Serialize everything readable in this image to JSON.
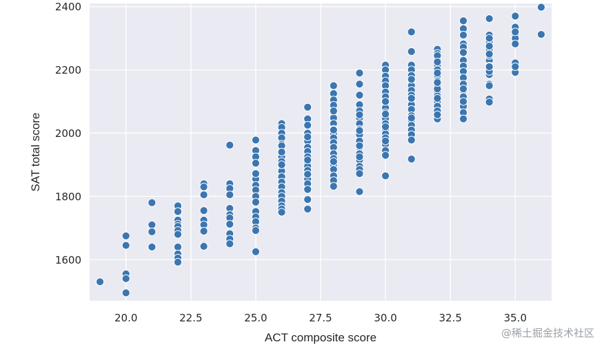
{
  "watermark": "@稀土掘金技术社区",
  "chart_data": {
    "type": "scatter",
    "xlabel": "ACT composite score",
    "ylabel": "SAT total score",
    "xlim": [
      18.6,
      36.4
    ],
    "ylim": [
      1470,
      2410
    ],
    "xticks": [
      "20.0",
      "22.5",
      "25.0",
      "27.5",
      "30.0",
      "32.5",
      "35.0"
    ],
    "yticks": [
      "1600",
      "1800",
      "2000",
      "2200",
      "2400"
    ],
    "grid": true,
    "background": "#eaeaf2",
    "point_color": "#3b76b0",
    "point_edge": "#ffffff",
    "x": [
      19,
      20,
      20,
      20,
      20,
      20,
      21,
      21,
      21,
      21,
      22,
      22,
      22,
      22,
      22,
      22,
      22,
      22,
      22,
      22,
      22,
      23,
      23,
      23,
      23,
      23,
      23,
      23,
      23,
      23,
      24,
      24,
      24,
      24,
      24,
      24,
      24,
      24,
      24,
      24,
      24,
      25,
      25,
      25,
      25,
      25,
      25,
      25,
      25,
      25,
      25,
      25,
      25,
      25,
      25,
      25,
      25,
      25,
      26,
      26,
      26,
      26,
      26,
      26,
      26,
      26,
      26,
      26,
      26,
      26,
      26,
      26,
      26,
      26,
      26,
      26,
      26,
      26,
      26,
      26,
      27,
      27,
      27,
      27,
      27,
      27,
      27,
      27,
      27,
      27,
      27,
      27,
      27,
      27,
      27,
      27,
      27,
      27,
      27,
      27,
      28,
      28,
      28,
      28,
      28,
      28,
      28,
      28,
      28,
      28,
      28,
      28,
      28,
      28,
      28,
      28,
      28,
      28,
      28,
      28,
      28,
      28,
      29,
      29,
      29,
      29,
      29,
      29,
      29,
      29,
      29,
      29,
      29,
      29,
      29,
      29,
      29,
      29,
      29,
      29,
      29,
      29,
      29,
      30,
      30,
      30,
      30,
      30,
      30,
      30,
      30,
      30,
      30,
      30,
      30,
      30,
      30,
      30,
      30,
      30,
      30,
      30,
      30,
      30,
      30,
      30,
      31,
      31,
      31,
      31,
      31,
      31,
      31,
      31,
      31,
      31,
      31,
      31,
      31,
      31,
      31,
      31,
      31,
      31,
      31,
      31,
      31,
      31,
      32,
      32,
      32,
      32,
      32,
      32,
      32,
      32,
      32,
      32,
      32,
      32,
      32,
      32,
      32,
      32,
      32,
      32,
      32,
      32,
      32,
      33,
      33,
      33,
      33,
      33,
      33,
      33,
      33,
      33,
      33,
      33,
      33,
      33,
      33,
      33,
      33,
      33,
      33,
      33,
      34,
      34,
      34,
      34,
      34,
      34,
      34,
      34,
      34,
      34,
      34,
      34,
      34,
      34,
      34,
      34,
      34,
      35,
      35,
      35,
      35,
      35,
      35,
      35,
      35,
      35,
      35,
      36,
      36
    ],
    "y": [
      1530,
      1675,
      1645,
      1555,
      1540,
      1495,
      1780,
      1710,
      1688,
      1640,
      1770,
      1752,
      1725,
      1712,
      1705,
      1692,
      1680,
      1640,
      1618,
      1605,
      1592,
      1840,
      1830,
      1805,
      1755,
      1725,
      1710,
      1690,
      1645,
      1642,
      1962,
      1840,
      1825,
      1805,
      1762,
      1742,
      1732,
      1712,
      1682,
      1665,
      1650,
      1978,
      1945,
      1925,
      1905,
      1872,
      1855,
      1835,
      1820,
      1800,
      1782,
      1752,
      1735,
      1720,
      1700,
      1692,
      1625,
      1872,
      2030,
      2018,
      2000,
      1985,
      1965,
      1945,
      1925,
      1910,
      1895,
      1880,
      1862,
      1845,
      1830,
      1812,
      1800,
      1785,
      1770,
      1760,
      1750,
      1960,
      1940,
      1900,
      2082,
      2045,
      2025,
      2000,
      1975,
      1955,
      1942,
      1925,
      1905,
      1895,
      1882,
      1870,
      1855,
      1840,
      1822,
      1790,
      1760,
      1915,
      1988,
      1870,
      2150,
      2125,
      2105,
      2088,
      2065,
      2048,
      2030,
      2012,
      1998,
      1985,
      1970,
      1955,
      1935,
      1920,
      1900,
      1885,
      1865,
      1850,
      1832,
      1910,
      2070,
      2010,
      2190,
      2155,
      2120,
      2090,
      2070,
      2048,
      2030,
      2012,
      1995,
      1975,
      1955,
      1935,
      1915,
      1895,
      1885,
      1872,
      1815,
      2008,
      2058,
      1925,
      1960,
      2215,
      2200,
      2180,
      2165,
      2150,
      2130,
      2115,
      2098,
      2080,
      2065,
      2045,
      2030,
      2012,
      1998,
      1985,
      1965,
      1945,
      1930,
      1865,
      2100,
      2060,
      2020,
      1975,
      2320,
      2258,
      2215,
      2200,
      2182,
      2165,
      2150,
      2135,
      2120,
      2105,
      2090,
      2075,
      2055,
      2040,
      2025,
      2010,
      1995,
      1918,
      2170,
      2110,
      2048,
      1978,
      2265,
      2252,
      2232,
      2215,
      2200,
      2182,
      2165,
      2150,
      2132,
      2118,
      2100,
      2085,
      2070,
      2045,
      2245,
      2190,
      2140,
      2110,
      2058,
      2225,
      2160,
      2355,
      2330,
      2310,
      2282,
      2255,
      2230,
      2212,
      2195,
      2175,
      2155,
      2135,
      2115,
      2085,
      2065,
      2045,
      2272,
      2255,
      2140,
      2100,
      2362,
      2310,
      2290,
      2265,
      2230,
      2212,
      2185,
      2155,
      2108,
      2098,
      2300,
      2275,
      2245,
      2195,
      2150,
      2250,
      2210,
      2370,
      2335,
      2310,
      2300,
      2282,
      2222,
      2205,
      2192,
      2320,
      2210,
      2398,
      2312
    ]
  }
}
